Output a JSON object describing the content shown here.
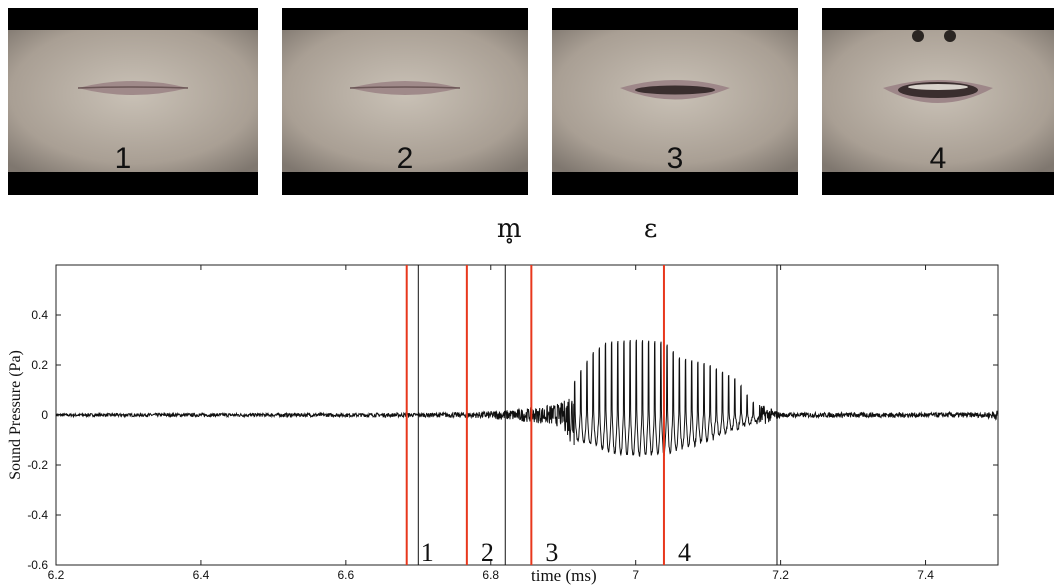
{
  "frames": [
    {
      "label": "1",
      "mouth": "closed"
    },
    {
      "label": "2",
      "mouth": "closed"
    },
    {
      "label": "3",
      "mouth": "slightly-open"
    },
    {
      "label": "4",
      "mouth": "open"
    }
  ],
  "chart_data": {
    "type": "line",
    "title": "",
    "xlabel": "time (ms)",
    "ylabel": "Sound Pressure (Pa)",
    "xlim": [
      6.2,
      7.5
    ],
    "ylim": [
      -0.6,
      0.6
    ],
    "xticks": [
      6.2,
      6.4,
      6.6,
      6.8,
      7,
      7.2,
      7.4
    ],
    "xtick_labels": [
      "6.2",
      "6.4",
      "6.6",
      "6.8",
      "7",
      "7.2",
      "7.4"
    ],
    "yticks": [
      -0.6,
      -0.4,
      -0.2,
      0,
      0.2,
      0.4
    ],
    "ytick_labels": [
      "-0.6",
      "-0.4",
      "-0.2",
      "0",
      "0.2",
      "0.4"
    ],
    "grid": false,
    "frame_markers": [
      {
        "x": 6.684,
        "label": "1",
        "color": "#e8371c"
      },
      {
        "x": 6.767,
        "label": "2",
        "color": "#e8371c"
      },
      {
        "x": 6.856,
        "label": "3",
        "color": "#e8371c"
      },
      {
        "x": 7.039,
        "label": "4",
        "color": "#e8371c"
      }
    ],
    "segment_boundaries": [
      6.7,
      6.82,
      7.195
    ],
    "segment_labels": [
      {
        "text": "m̥",
        "x": 6.82
      },
      {
        "text": "ɛ",
        "x": 7.015
      }
    ],
    "waveform": {
      "baseline_noise": 0.008,
      "envelope": [
        [
          6.2,
          0.006
        ],
        [
          6.7,
          0.008
        ],
        [
          6.78,
          0.012
        ],
        [
          6.82,
          0.02
        ],
        [
          6.86,
          0.03
        ],
        [
          6.9,
          0.05
        ],
        [
          6.92,
          0.18
        ],
        [
          6.94,
          0.28
        ],
        [
          6.96,
          0.33
        ],
        [
          7.0,
          0.34
        ],
        [
          7.04,
          0.33
        ],
        [
          7.06,
          0.26
        ],
        [
          7.1,
          0.23
        ],
        [
          7.14,
          0.16
        ],
        [
          7.16,
          0.06
        ],
        [
          7.2,
          0.01
        ],
        [
          7.48,
          0.01
        ],
        [
          7.5,
          0.02
        ]
      ],
      "negative_envelope": [
        [
          6.92,
          -0.1
        ],
        [
          6.98,
          -0.16
        ],
        [
          7.04,
          -0.16
        ],
        [
          7.1,
          -0.1
        ],
        [
          7.16,
          -0.03
        ]
      ],
      "voicing_period_ms": 0.0085
    }
  }
}
